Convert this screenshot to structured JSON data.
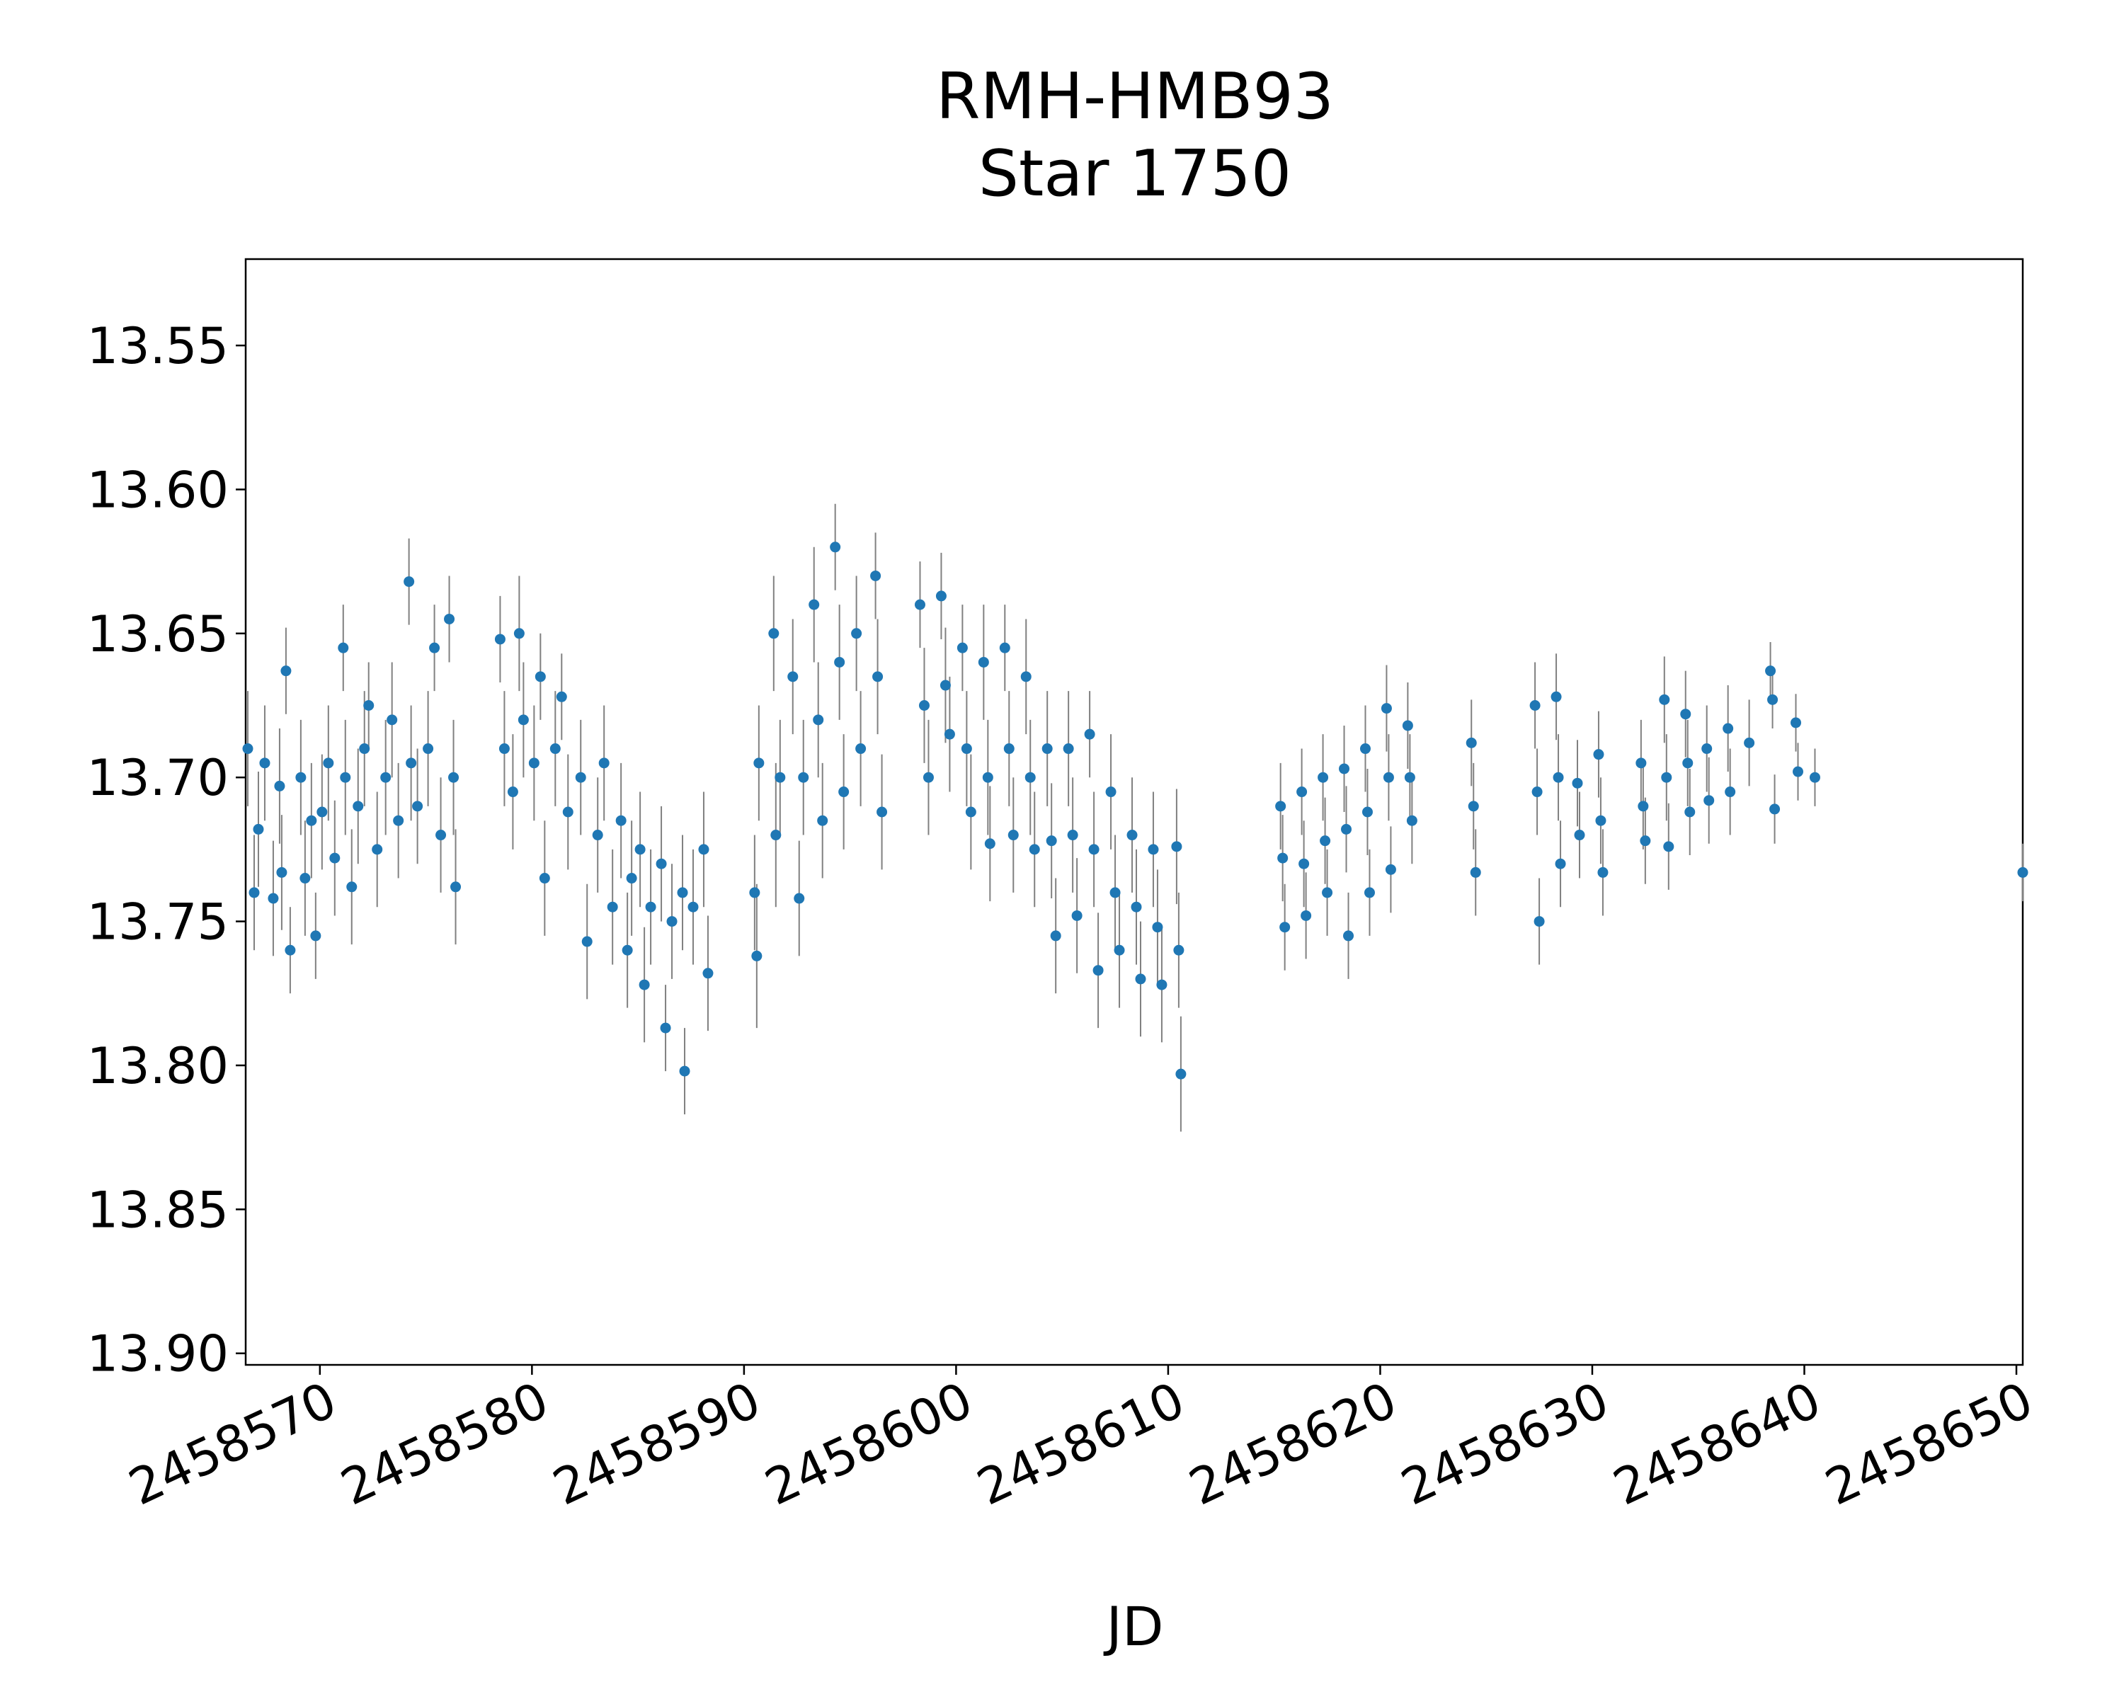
{
  "chart_data": {
    "type": "scatter",
    "title": "RMH-HMB93",
    "subtitle": "Star 1750",
    "xlabel": "JD",
    "ylabel": "",
    "y_inverted": true,
    "xlim": [
      2458566.5,
      2458650.3
    ],
    "ylim": [
      13.52,
      13.904
    ],
    "xticks": [
      2458570,
      2458580,
      2458590,
      2458600,
      2458610,
      2458620,
      2458630,
      2458640,
      2458650
    ],
    "xtick_labels": [
      "2458570",
      "2458580",
      "2458590",
      "2458600",
      "2458610",
      "2458620",
      "2458630",
      "2458640",
      "2458650"
    ],
    "yticks": [
      13.55,
      13.6,
      13.65,
      13.7,
      13.75,
      13.8,
      13.85,
      13.9
    ],
    "ytick_labels": [
      "13.55",
      "13.60",
      "13.65",
      "13.70",
      "13.75",
      "13.80",
      "13.85",
      "13.90"
    ],
    "grid": false,
    "legend": "none",
    "errorbar": true,
    "marker_color": "#1f77b4",
    "errorbar_color": "#808080",
    "series": [
      {
        "points": [
          [
            2458566.6,
            13.69,
            0.02
          ],
          [
            2458566.9,
            13.74,
            0.02
          ],
          [
            2458567.1,
            13.718,
            0.02
          ],
          [
            2458567.4,
            13.695,
            0.02
          ],
          [
            2458567.8,
            13.742,
            0.02
          ],
          [
            2458568.1,
            13.703,
            0.02
          ],
          [
            2458568.2,
            13.733,
            0.02
          ],
          [
            2458568.4,
            13.663,
            0.015
          ],
          [
            2458568.6,
            13.76,
            0.015
          ],
          [
            2458569.1,
            13.7,
            0.02
          ],
          [
            2458569.3,
            13.735,
            0.02
          ],
          [
            2458569.6,
            13.715,
            0.02
          ],
          [
            2458569.8,
            13.755,
            0.015
          ],
          [
            2458570.1,
            13.712,
            0.02
          ],
          [
            2458570.4,
            13.695,
            0.02
          ],
          [
            2458570.7,
            13.728,
            0.02
          ],
          [
            2458571.1,
            13.655,
            0.015
          ],
          [
            2458571.2,
            13.7,
            0.02
          ],
          [
            2458571.5,
            13.738,
            0.02
          ],
          [
            2458571.8,
            13.71,
            0.02
          ],
          [
            2458572.1,
            13.69,
            0.02
          ],
          [
            2458572.3,
            13.675,
            0.015
          ],
          [
            2458572.7,
            13.725,
            0.02
          ],
          [
            2458573.1,
            13.7,
            0.02
          ],
          [
            2458573.4,
            13.68,
            0.02
          ],
          [
            2458573.7,
            13.715,
            0.02
          ],
          [
            2458574.2,
            13.632,
            0.015
          ],
          [
            2458574.3,
            13.695,
            0.02
          ],
          [
            2458574.6,
            13.71,
            0.02
          ],
          [
            2458575.1,
            13.69,
            0.02
          ],
          [
            2458575.4,
            13.655,
            0.015
          ],
          [
            2458575.7,
            13.72,
            0.02
          ],
          [
            2458576.1,
            13.645,
            0.015
          ],
          [
            2458576.3,
            13.7,
            0.02
          ],
          [
            2458576.4,
            13.738,
            0.02
          ],
          [
            2458578.5,
            13.652,
            0.015
          ],
          [
            2458578.7,
            13.69,
            0.02
          ],
          [
            2458579.1,
            13.705,
            0.02
          ],
          [
            2458579.4,
            13.65,
            0.02
          ],
          [
            2458579.6,
            13.68,
            0.02
          ],
          [
            2458580.1,
            13.695,
            0.02
          ],
          [
            2458580.4,
            13.665,
            0.015
          ],
          [
            2458580.6,
            13.735,
            0.02
          ],
          [
            2458581.1,
            13.69,
            0.02
          ],
          [
            2458581.4,
            13.672,
            0.015
          ],
          [
            2458581.7,
            13.712,
            0.02
          ],
          [
            2458582.3,
            13.7,
            0.02
          ],
          [
            2458582.6,
            13.757,
            0.02
          ],
          [
            2458583.1,
            13.72,
            0.02
          ],
          [
            2458583.4,
            13.695,
            0.02
          ],
          [
            2458583.8,
            13.745,
            0.02
          ],
          [
            2458584.2,
            13.715,
            0.02
          ],
          [
            2458584.5,
            13.76,
            0.02
          ],
          [
            2458584.7,
            13.735,
            0.02
          ],
          [
            2458585.1,
            13.725,
            0.02
          ],
          [
            2458585.3,
            13.772,
            0.02
          ],
          [
            2458585.6,
            13.745,
            0.02
          ],
          [
            2458586.1,
            13.73,
            0.02
          ],
          [
            2458586.3,
            13.787,
            0.015
          ],
          [
            2458586.6,
            13.75,
            0.02
          ],
          [
            2458587.1,
            13.74,
            0.02
          ],
          [
            2458587.2,
            13.802,
            0.015
          ],
          [
            2458587.6,
            13.745,
            0.02
          ],
          [
            2458588.1,
            13.725,
            0.02
          ],
          [
            2458588.3,
            13.768,
            0.02
          ],
          [
            2458590.5,
            13.74,
            0.02
          ],
          [
            2458590.6,
            13.762,
            0.025
          ],
          [
            2458590.7,
            13.695,
            0.02
          ],
          [
            2458591.4,
            13.65,
            0.02
          ],
          [
            2458591.5,
            13.72,
            0.025
          ],
          [
            2458591.7,
            13.7,
            0.02
          ],
          [
            2458592.3,
            13.665,
            0.02
          ],
          [
            2458592.6,
            13.742,
            0.02
          ],
          [
            2458592.8,
            13.7,
            0.02
          ],
          [
            2458593.3,
            13.64,
            0.02
          ],
          [
            2458593.5,
            13.68,
            0.02
          ],
          [
            2458593.7,
            13.715,
            0.02
          ],
          [
            2458594.3,
            13.62,
            0.015
          ],
          [
            2458594.5,
            13.66,
            0.02
          ],
          [
            2458594.7,
            13.705,
            0.02
          ],
          [
            2458595.3,
            13.65,
            0.02
          ],
          [
            2458595.5,
            13.69,
            0.02
          ],
          [
            2458596.2,
            13.63,
            0.015
          ],
          [
            2458596.3,
            13.665,
            0.02
          ],
          [
            2458596.5,
            13.712,
            0.02
          ],
          [
            2458598.3,
            13.64,
            0.015
          ],
          [
            2458598.5,
            13.675,
            0.02
          ],
          [
            2458598.7,
            13.7,
            0.02
          ],
          [
            2458599.3,
            13.637,
            0.015
          ],
          [
            2458599.5,
            13.668,
            0.02
          ],
          [
            2458599.7,
            13.685,
            0.02
          ],
          [
            2458600.3,
            13.655,
            0.015
          ],
          [
            2458600.5,
            13.69,
            0.02
          ],
          [
            2458600.7,
            13.712,
            0.02
          ],
          [
            2458601.3,
            13.66,
            0.02
          ],
          [
            2458601.5,
            13.7,
            0.02
          ],
          [
            2458601.6,
            13.723,
            0.02
          ],
          [
            2458602.3,
            13.655,
            0.015
          ],
          [
            2458602.5,
            13.69,
            0.02
          ],
          [
            2458602.7,
            13.72,
            0.02
          ],
          [
            2458603.3,
            13.665,
            0.02
          ],
          [
            2458603.5,
            13.7,
            0.02
          ],
          [
            2458603.7,
            13.725,
            0.02
          ],
          [
            2458604.3,
            13.69,
            0.02
          ],
          [
            2458604.5,
            13.722,
            0.02
          ],
          [
            2458604.7,
            13.755,
            0.02
          ],
          [
            2458605.3,
            13.69,
            0.02
          ],
          [
            2458605.5,
            13.72,
            0.02
          ],
          [
            2458605.7,
            13.748,
            0.02
          ],
          [
            2458606.3,
            13.685,
            0.015
          ],
          [
            2458606.5,
            13.725,
            0.02
          ],
          [
            2458606.7,
            13.767,
            0.02
          ],
          [
            2458607.3,
            13.705,
            0.02
          ],
          [
            2458607.5,
            13.74,
            0.02
          ],
          [
            2458607.7,
            13.76,
            0.02
          ],
          [
            2458608.3,
            13.72,
            0.02
          ],
          [
            2458608.5,
            13.745,
            0.02
          ],
          [
            2458608.7,
            13.77,
            0.02
          ],
          [
            2458609.3,
            13.725,
            0.02
          ],
          [
            2458609.5,
            13.752,
            0.02
          ],
          [
            2458609.7,
            13.772,
            0.02
          ],
          [
            2458610.4,
            13.724,
            0.02
          ],
          [
            2458610.5,
            13.76,
            0.02
          ],
          [
            2458610.6,
            13.803,
            0.02
          ],
          [
            2458615.3,
            13.71,
            0.015
          ],
          [
            2458615.4,
            13.728,
            0.015
          ],
          [
            2458615.5,
            13.752,
            0.015
          ],
          [
            2458616.3,
            13.705,
            0.015
          ],
          [
            2458616.4,
            13.73,
            0.015
          ],
          [
            2458616.5,
            13.748,
            0.015
          ],
          [
            2458617.3,
            13.7,
            0.015
          ],
          [
            2458617.4,
            13.722,
            0.015
          ],
          [
            2458617.5,
            13.74,
            0.015
          ],
          [
            2458618.3,
            13.697,
            0.015
          ],
          [
            2458618.4,
            13.718,
            0.015
          ],
          [
            2458618.5,
            13.755,
            0.015
          ],
          [
            2458619.3,
            13.69,
            0.015
          ],
          [
            2458619.4,
            13.712,
            0.015
          ],
          [
            2458619.5,
            13.74,
            0.015
          ],
          [
            2458620.3,
            13.676,
            0.015
          ],
          [
            2458620.4,
            13.7,
            0.015
          ],
          [
            2458620.5,
            13.732,
            0.015
          ],
          [
            2458621.3,
            13.682,
            0.015
          ],
          [
            2458621.4,
            13.7,
            0.015
          ],
          [
            2458621.5,
            13.715,
            0.015
          ],
          [
            2458624.3,
            13.688,
            0.015
          ],
          [
            2458624.4,
            13.71,
            0.015
          ],
          [
            2458624.5,
            13.733,
            0.015
          ],
          [
            2458627.3,
            13.675,
            0.015
          ],
          [
            2458627.4,
            13.705,
            0.015
          ],
          [
            2458627.5,
            13.75,
            0.015
          ],
          [
            2458628.3,
            13.672,
            0.015
          ],
          [
            2458628.4,
            13.7,
            0.015
          ],
          [
            2458628.5,
            13.73,
            0.015
          ],
          [
            2458629.3,
            13.702,
            0.015
          ],
          [
            2458629.4,
            13.72,
            0.015
          ],
          [
            2458630.3,
            13.692,
            0.015
          ],
          [
            2458630.4,
            13.715,
            0.015
          ],
          [
            2458630.5,
            13.733,
            0.015
          ],
          [
            2458632.3,
            13.695,
            0.015
          ],
          [
            2458632.4,
            13.71,
            0.015
          ],
          [
            2458632.5,
            13.722,
            0.015
          ],
          [
            2458633.4,
            13.673,
            0.015
          ],
          [
            2458633.5,
            13.7,
            0.015
          ],
          [
            2458633.6,
            13.724,
            0.015
          ],
          [
            2458634.4,
            13.678,
            0.015
          ],
          [
            2458634.5,
            13.695,
            0.015
          ],
          [
            2458634.6,
            13.712,
            0.015
          ],
          [
            2458635.4,
            13.69,
            0.015
          ],
          [
            2458635.5,
            13.708,
            0.015
          ],
          [
            2458636.4,
            13.683,
            0.015
          ],
          [
            2458636.5,
            13.705,
            0.015
          ],
          [
            2458637.4,
            13.688,
            0.015
          ],
          [
            2458638.4,
            13.663,
            0.01
          ],
          [
            2458638.5,
            13.673,
            0.01
          ],
          [
            2458638.6,
            13.711,
            0.012
          ],
          [
            2458639.6,
            13.681,
            0.01
          ],
          [
            2458639.7,
            13.698,
            0.01
          ],
          [
            2458640.5,
            13.7,
            0.01
          ],
          [
            2458650.3,
            13.733,
            0.01
          ]
        ]
      }
    ]
  }
}
